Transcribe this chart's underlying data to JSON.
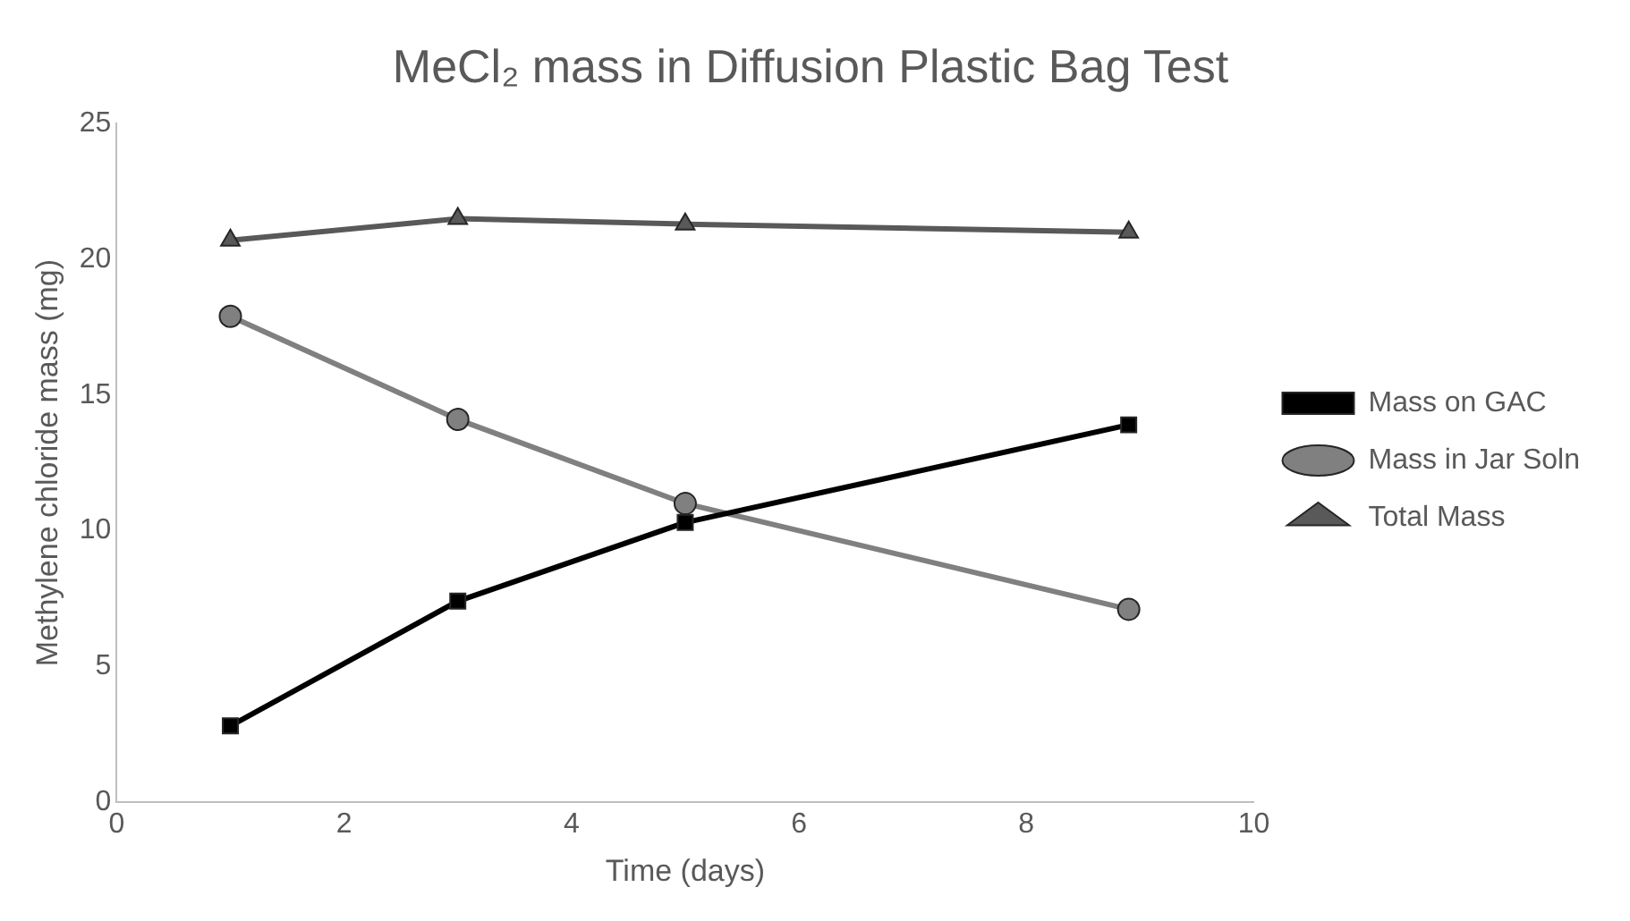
{
  "chart_data": {
    "type": "line",
    "title": "MeCl₂ mass in Diffusion Plastic Bag Test",
    "xlabel": "Time (days)",
    "ylabel": "Methylene chloride mass (mg)",
    "x": [
      1,
      3,
      5,
      8.9
    ],
    "series": [
      {
        "name": "Mass on GAC",
        "color": "#000000",
        "marker": "square",
        "values": [
          2.8,
          7.4,
          10.3,
          13.9
        ]
      },
      {
        "name": "Mass in Jar Soln",
        "color": "#808080",
        "marker": "circle",
        "values": [
          17.9,
          14.1,
          11.0,
          7.1
        ]
      },
      {
        "name": "Total Mass",
        "color": "#595959",
        "marker": "triangle",
        "values": [
          20.7,
          21.5,
          21.3,
          21.0
        ]
      }
    ],
    "xlim": [
      0,
      10
    ],
    "xticks": [
      0,
      2,
      4,
      6,
      8,
      10
    ],
    "ylim": [
      0,
      25
    ],
    "yticks": [
      0,
      5,
      10,
      15,
      20,
      25
    ],
    "grid": false,
    "legend": "right"
  }
}
